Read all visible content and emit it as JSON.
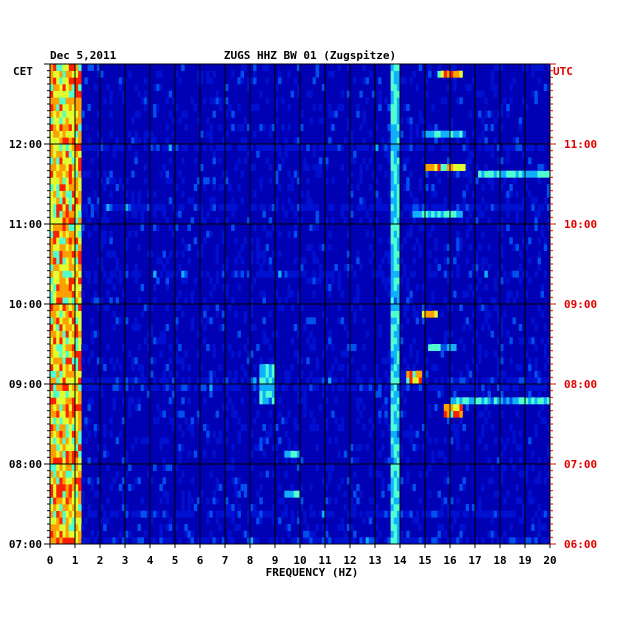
{
  "chart_data": {
    "type": "heatmap",
    "title": "ZUGS HHZ BW 01 (Zugspitze)",
    "date": "Dec 5,2011",
    "xlabel": "FREQUENCY (HZ)",
    "xlim": [
      0,
      20
    ],
    "x_ticks": [
      "0",
      "1",
      "2",
      "3",
      "4",
      "5",
      "6",
      "7",
      "8",
      "9",
      "10",
      "11",
      "12",
      "13",
      "14",
      "15",
      "16",
      "17",
      "18",
      "19",
      "20"
    ],
    "left_axis_label": "CET",
    "right_axis_label": "UTC",
    "left_ticks": [
      "07:00",
      "08:00",
      "09:00",
      "10:00",
      "11:00",
      "12:00"
    ],
    "right_ticks": [
      "06:00",
      "07:00",
      "08:00",
      "09:00",
      "10:00",
      "11:00"
    ],
    "time_range_cet": [
      "07:00",
      "13:00"
    ],
    "rows_per_hour": 12,
    "colormap": [
      "#0000b4",
      "#0010d0",
      "#0050f0",
      "#10b0ff",
      "#50ffd0",
      "#e0ff30",
      "#ffa000",
      "#ff2000",
      "#a00000"
    ],
    "background_level": "low energy (dark blue) across all frequencies",
    "features": [
      {
        "label": "low-frequency band",
        "freq_hz": [
          0.0,
          1.2
        ],
        "time_cet": [
          "07:00",
          "13:00"
        ],
        "level": "high"
      },
      {
        "label": "persistent line",
        "freq_hz": [
          13.7,
          14.0
        ],
        "time_cet": [
          "07:00",
          "13:00"
        ],
        "level": "medium"
      },
      {
        "label": "burst",
        "freq_hz": [
          14.9,
          15.4
        ],
        "time_cet": [
          "09:50",
          "09:55"
        ],
        "level": "high"
      },
      {
        "label": "burst",
        "freq_hz": [
          14.3,
          14.8
        ],
        "time_cet": [
          "09:00",
          "09:10"
        ],
        "level": "high"
      },
      {
        "label": "burst",
        "freq_hz": [
          15.8,
          16.4
        ],
        "time_cet": [
          "08:35",
          "08:45"
        ],
        "level": "high"
      },
      {
        "label": "band",
        "freq_hz": [
          15.2,
          16.2
        ],
        "time_cet": [
          "09:25",
          "09:30"
        ],
        "level": "medium"
      },
      {
        "label": "band",
        "freq_hz": [
          15.5,
          16.5
        ],
        "time_cet": [
          "12:50",
          "12:55"
        ],
        "level": "high"
      },
      {
        "label": "band",
        "freq_hz": [
          15.0,
          16.6
        ],
        "time_cet": [
          "12:05",
          "12:10"
        ],
        "level": "medium"
      },
      {
        "label": "band",
        "freq_hz": [
          15.0,
          16.6
        ],
        "time_cet": [
          "11:40",
          "11:45"
        ],
        "level": "high"
      },
      {
        "label": "band",
        "freq_hz": [
          14.5,
          16.5
        ],
        "time_cet": [
          "11:05",
          "11:10"
        ],
        "level": "medium"
      },
      {
        "label": "broad band",
        "freq_hz": [
          17.2,
          20.0
        ],
        "time_cet": [
          "11:35",
          "11:40"
        ],
        "level": "medium"
      },
      {
        "label": "cluster",
        "freq_hz": [
          8.4,
          8.9
        ],
        "time_cet": [
          "08:45",
          "09:15"
        ],
        "level": "medium"
      },
      {
        "label": "burst",
        "freq_hz": [
          9.4,
          9.9
        ],
        "time_cet": [
          "08:05",
          "08:10"
        ],
        "level": "medium"
      },
      {
        "label": "burst",
        "freq_hz": [
          9.4,
          9.9
        ],
        "time_cet": [
          "07:35",
          "07:40"
        ],
        "level": "medium"
      },
      {
        "label": "band",
        "freq_hz": [
          16.0,
          20.0
        ],
        "time_cet": [
          "08:45",
          "08:50"
        ],
        "level": "medium"
      }
    ]
  }
}
